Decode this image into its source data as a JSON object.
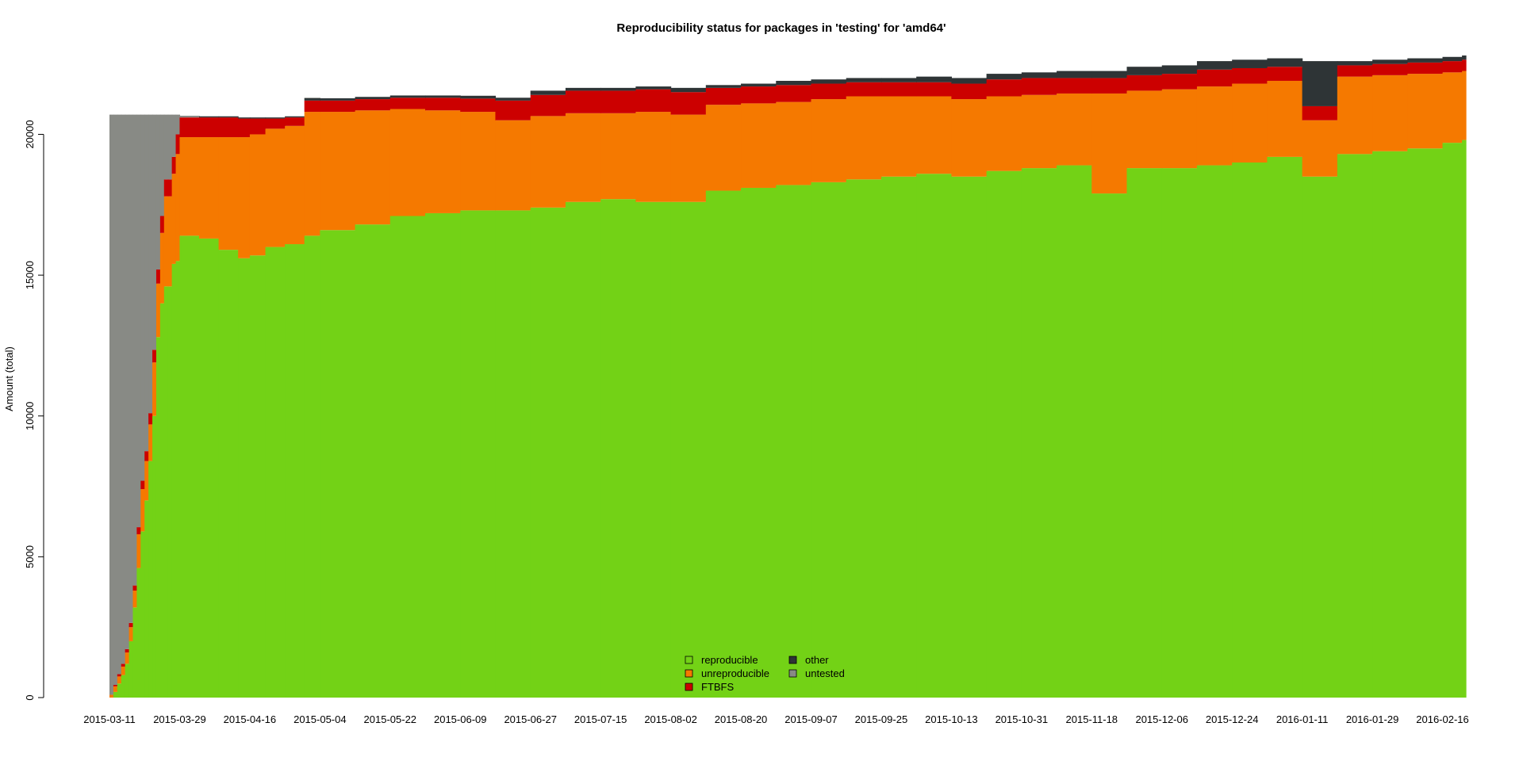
{
  "chart_data": {
    "type": "area",
    "stacked": true,
    "title": "Reproducibility status for packages in 'testing' for 'amd64'",
    "xlabel": "",
    "ylabel": "Amount (total)",
    "ylim": [
      0,
      22800
    ],
    "yticks": [
      0,
      5000,
      10000,
      15000,
      20000
    ],
    "xtick_labels": [
      "2015-03-11",
      "2015-03-29",
      "2015-04-16",
      "2015-05-04",
      "2015-05-22",
      "2015-06-09",
      "2015-06-27",
      "2015-07-15",
      "2015-08-02",
      "2015-08-20",
      "2015-09-07",
      "2015-09-25",
      "2015-10-13",
      "2015-10-31",
      "2015-11-18",
      "2015-12-06",
      "2015-12-24",
      "2016-01-11",
      "2016-01-29",
      "2016-02-16"
    ],
    "legend_position": "bottom-center",
    "series_order": [
      "reproducible",
      "unreproducible",
      "FTBFS",
      "other",
      "untested"
    ],
    "series": [
      {
        "name": "reproducible",
        "color": "#73d216"
      },
      {
        "name": "unreproducible",
        "color": "#f57900"
      },
      {
        "name": "FTBFS",
        "color": "#cc0000"
      },
      {
        "name": "other",
        "color": "#2e3436"
      },
      {
        "name": "untested",
        "color": "#888a85"
      }
    ],
    "data": [
      {
        "date": "2015-03-11",
        "reproducible": 0,
        "unreproducible": 100,
        "FTBFS": 0,
        "other": 0,
        "untested": 20600
      },
      {
        "date": "2015-03-12",
        "reproducible": 200,
        "unreproducible": 200,
        "FTBFS": 50,
        "other": 0,
        "untested": 20250
      },
      {
        "date": "2015-03-13",
        "reproducible": 500,
        "unreproducible": 250,
        "FTBFS": 80,
        "other": 0,
        "untested": 19870
      },
      {
        "date": "2015-03-14",
        "reproducible": 800,
        "unreproducible": 300,
        "FTBFS": 100,
        "other": 0,
        "untested": 19500
      },
      {
        "date": "2015-03-15",
        "reproducible": 1200,
        "unreproducible": 400,
        "FTBFS": 120,
        "other": 0,
        "untested": 18980
      },
      {
        "date": "2015-03-16",
        "reproducible": 2000,
        "unreproducible": 500,
        "FTBFS": 150,
        "other": 0,
        "untested": 18050
      },
      {
        "date": "2015-03-17",
        "reproducible": 3200,
        "unreproducible": 600,
        "FTBFS": 180,
        "other": 0,
        "untested": 16720
      },
      {
        "date": "2015-03-18",
        "reproducible": 4600,
        "unreproducible": 1200,
        "FTBFS": 250,
        "other": 0,
        "untested": 14650
      },
      {
        "date": "2015-03-19",
        "reproducible": 5900,
        "unreproducible": 1500,
        "FTBFS": 300,
        "other": 0,
        "untested": 13000
      },
      {
        "date": "2015-03-20",
        "reproducible": 7000,
        "unreproducible": 1400,
        "FTBFS": 350,
        "other": 0,
        "untested": 11950
      },
      {
        "date": "2015-03-21",
        "reproducible": 8400,
        "unreproducible": 1300,
        "FTBFS": 400,
        "other": 0,
        "untested": 10600
      },
      {
        "date": "2015-03-22",
        "reproducible": 10000,
        "unreproducible": 1900,
        "FTBFS": 450,
        "other": 0,
        "untested": 8350
      },
      {
        "date": "2015-03-23",
        "reproducible": 12800,
        "unreproducible": 1900,
        "FTBFS": 500,
        "other": 0,
        "untested": 5500
      },
      {
        "date": "2015-03-24",
        "reproducible": 14000,
        "unreproducible": 2500,
        "FTBFS": 600,
        "other": 0,
        "untested": 3600
      },
      {
        "date": "2015-03-25",
        "reproducible": 14600,
        "unreproducible": 3200,
        "FTBFS": 600,
        "other": 0,
        "untested": 2300
      },
      {
        "date": "2015-03-26",
        "reproducible": 14600,
        "unreproducible": 3200,
        "FTBFS": 600,
        "other": 0,
        "untested": 2300
      },
      {
        "date": "2015-03-27",
        "reproducible": 15400,
        "unreproducible": 3200,
        "FTBFS": 600,
        "other": 0,
        "untested": 1500
      },
      {
        "date": "2015-03-28",
        "reproducible": 15500,
        "unreproducible": 3800,
        "FTBFS": 700,
        "other": 0,
        "untested": 700
      },
      {
        "date": "2015-03-29",
        "reproducible": 16400,
        "unreproducible": 3500,
        "FTBFS": 700,
        "other": 0,
        "untested": 60
      },
      {
        "date": "2015-04-03",
        "reproducible": 16300,
        "unreproducible": 3600,
        "FTBFS": 700,
        "other": 40,
        "untested": 0
      },
      {
        "date": "2015-04-08",
        "reproducible": 15900,
        "unreproducible": 4000,
        "FTBFS": 700,
        "other": 40,
        "untested": 0
      },
      {
        "date": "2015-04-13",
        "reproducible": 15600,
        "unreproducible": 4300,
        "FTBFS": 660,
        "other": 40,
        "untested": 0
      },
      {
        "date": "2015-04-16",
        "reproducible": 15700,
        "unreproducible": 4300,
        "FTBFS": 560,
        "other": 40,
        "untested": 0
      },
      {
        "date": "2015-04-20",
        "reproducible": 16000,
        "unreproducible": 4200,
        "FTBFS": 360,
        "other": 40,
        "untested": 0
      },
      {
        "date": "2015-04-25",
        "reproducible": 16100,
        "unreproducible": 4200,
        "FTBFS": 300,
        "other": 40,
        "untested": 0
      },
      {
        "date": "2015-04-30",
        "reproducible": 16400,
        "unreproducible": 4400,
        "FTBFS": 400,
        "other": 80,
        "untested": 20
      },
      {
        "date": "2015-05-04",
        "reproducible": 16600,
        "unreproducible": 4200,
        "FTBFS": 400,
        "other": 80,
        "untested": 0
      },
      {
        "date": "2015-05-13",
        "reproducible": 16800,
        "unreproducible": 4050,
        "FTBFS": 400,
        "other": 80,
        "untested": 0
      },
      {
        "date": "2015-05-22",
        "reproducible": 17100,
        "unreproducible": 3800,
        "FTBFS": 400,
        "other": 80,
        "untested": 0
      },
      {
        "date": "2015-05-31",
        "reproducible": 17200,
        "unreproducible": 3650,
        "FTBFS": 450,
        "other": 80,
        "untested": 0
      },
      {
        "date": "2015-06-09",
        "reproducible": 17300,
        "unreproducible": 3500,
        "FTBFS": 470,
        "other": 100,
        "untested": 0
      },
      {
        "date": "2015-06-18",
        "reproducible": 17300,
        "unreproducible": 3200,
        "FTBFS": 700,
        "other": 100,
        "untested": 0
      },
      {
        "date": "2015-06-27",
        "reproducible": 17400,
        "unreproducible": 3250,
        "FTBFS": 750,
        "other": 150,
        "untested": 0
      },
      {
        "date": "2015-07-06",
        "reproducible": 17600,
        "unreproducible": 3150,
        "FTBFS": 800,
        "other": 100,
        "untested": 0
      },
      {
        "date": "2015-07-15",
        "reproducible": 17700,
        "unreproducible": 3050,
        "FTBFS": 800,
        "other": 100,
        "untested": 0
      },
      {
        "date": "2015-07-24",
        "reproducible": 17600,
        "unreproducible": 3200,
        "FTBFS": 800,
        "other": 100,
        "untested": 0
      },
      {
        "date": "2015-08-02",
        "reproducible": 17600,
        "unreproducible": 3100,
        "FTBFS": 800,
        "other": 150,
        "untested": 0
      },
      {
        "date": "2015-08-11",
        "reproducible": 18000,
        "unreproducible": 3050,
        "FTBFS": 600,
        "other": 100,
        "untested": 0
      },
      {
        "date": "2015-08-20",
        "reproducible": 18100,
        "unreproducible": 3000,
        "FTBFS": 600,
        "other": 100,
        "untested": 0
      },
      {
        "date": "2015-08-29",
        "reproducible": 18200,
        "unreproducible": 2950,
        "FTBFS": 600,
        "other": 150,
        "untested": 0
      },
      {
        "date": "2015-09-07",
        "reproducible": 18300,
        "unreproducible": 2950,
        "FTBFS": 550,
        "other": 150,
        "untested": 0
      },
      {
        "date": "2015-09-16",
        "reproducible": 18400,
        "unreproducible": 2950,
        "FTBFS": 500,
        "other": 150,
        "untested": 0
      },
      {
        "date": "2015-09-25",
        "reproducible": 18500,
        "unreproducible": 2850,
        "FTBFS": 500,
        "other": 150,
        "untested": 0
      },
      {
        "date": "2015-10-04",
        "reproducible": 18600,
        "unreproducible": 2750,
        "FTBFS": 500,
        "other": 200,
        "untested": 0
      },
      {
        "date": "2015-10-13",
        "reproducible": 18500,
        "unreproducible": 2750,
        "FTBFS": 550,
        "other": 200,
        "untested": 0
      },
      {
        "date": "2015-10-22",
        "reproducible": 18700,
        "unreproducible": 2650,
        "FTBFS": 600,
        "other": 200,
        "untested": 0
      },
      {
        "date": "2015-10-31",
        "reproducible": 18800,
        "unreproducible": 2600,
        "FTBFS": 600,
        "other": 200,
        "untested": 0
      },
      {
        "date": "2015-11-09",
        "reproducible": 18900,
        "unreproducible": 2550,
        "FTBFS": 550,
        "other": 250,
        "untested": 0
      },
      {
        "date": "2015-11-18",
        "reproducible": 17900,
        "unreproducible": 3550,
        "FTBFS": 550,
        "other": 250,
        "untested": 0
      },
      {
        "date": "2015-11-27",
        "reproducible": 18800,
        "unreproducible": 2750,
        "FTBFS": 550,
        "other": 300,
        "untested": 0
      },
      {
        "date": "2015-12-06",
        "reproducible": 18800,
        "unreproducible": 2800,
        "FTBFS": 550,
        "other": 300,
        "untested": 0
      },
      {
        "date": "2015-12-15",
        "reproducible": 18900,
        "unreproducible": 2800,
        "FTBFS": 600,
        "other": 300,
        "untested": 0
      },
      {
        "date": "2015-12-24",
        "reproducible": 19000,
        "unreproducible": 2800,
        "FTBFS": 550,
        "other": 300,
        "untested": 0
      },
      {
        "date": "2016-01-02",
        "reproducible": 19200,
        "unreproducible": 2700,
        "FTBFS": 500,
        "other": 300,
        "untested": 0
      },
      {
        "date": "2016-01-11",
        "reproducible": 18500,
        "unreproducible": 2000,
        "FTBFS": 500,
        "other": 1600,
        "untested": 0
      },
      {
        "date": "2016-01-20",
        "reproducible": 19300,
        "unreproducible": 2750,
        "FTBFS": 400,
        "other": 150,
        "untested": 0
      },
      {
        "date": "2016-01-29",
        "reproducible": 19400,
        "unreproducible": 2700,
        "FTBFS": 400,
        "other": 150,
        "untested": 0
      },
      {
        "date": "2016-02-07",
        "reproducible": 19500,
        "unreproducible": 2650,
        "FTBFS": 400,
        "other": 150,
        "untested": 0
      },
      {
        "date": "2016-02-16",
        "reproducible": 19700,
        "unreproducible": 2500,
        "FTBFS": 400,
        "other": 150,
        "untested": 0
      },
      {
        "date": "2016-02-21",
        "reproducible": 19800,
        "unreproducible": 2450,
        "FTBFS": 400,
        "other": 150,
        "untested": 0
      }
    ]
  }
}
